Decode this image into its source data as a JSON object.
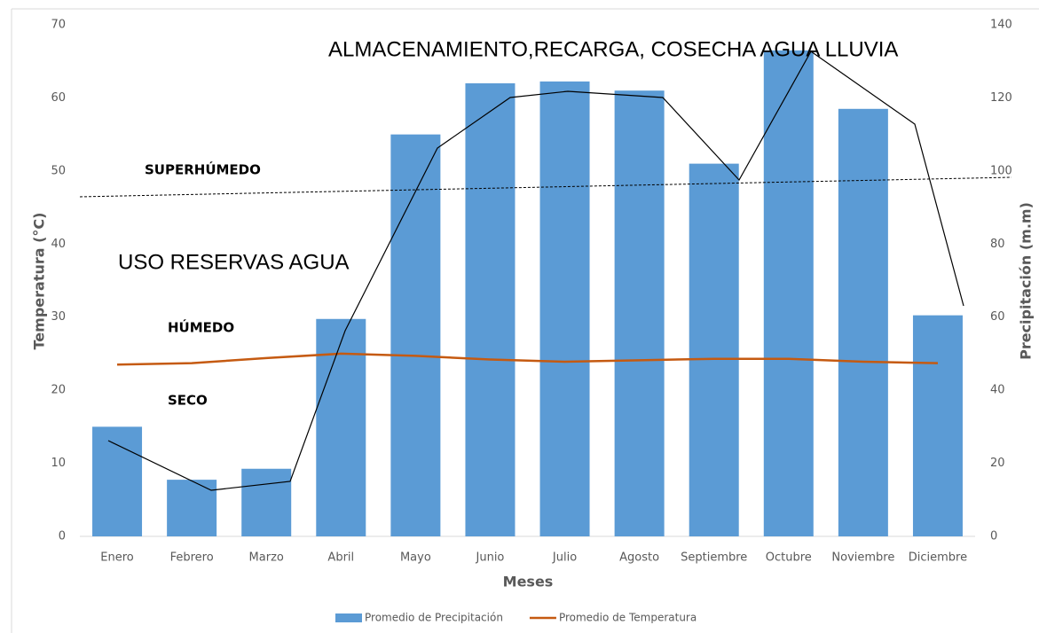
{
  "chart_data": {
    "type": "bar",
    "categories": [
      "Enero",
      "Febrero",
      "Marzo",
      "Abril",
      "Mayo",
      "Junio",
      "Julio",
      "Agosto",
      "Septiembre",
      "Octubre",
      "Noviembre",
      "Diciembre"
    ],
    "series": [
      {
        "name": "Promedio de Precipitación",
        "type": "bar",
        "axis": "y2",
        "color": "#5b9bd5",
        "values": [
          30,
          15.5,
          18.5,
          59.5,
          110,
          124,
          124.5,
          122,
          102,
          133,
          117,
          60.5
        ]
      },
      {
        "name": "Promedio de Temperatura",
        "type": "line",
        "color": "#c55a11",
        "values": [
          23.5,
          23.7,
          24.4,
          25,
          24.7,
          24.2,
          23.9,
          24.1,
          24.3,
          24.3,
          23.9,
          23.7
        ]
      }
    ],
    "ylim": [
      0,
      70
    ],
    "yticks": [
      0,
      10,
      20,
      30,
      40,
      50,
      60,
      70
    ],
    "y2lim": [
      0,
      140
    ],
    "y2ticks": [
      0,
      20,
      40,
      60,
      80,
      100,
      120,
      140
    ],
    "ylabel": "Temperatura (°C)",
    "y2label": "Precipitación (m.m)",
    "xlabel": "Meses",
    "annotations": [
      "ALMACENAMIENTO,RECARGA, COSECHA AGUA LLUVIA",
      "SUPERHÚMEDO",
      "USO RESERVAS AGUA",
      "HÚMEDO",
      "SECO"
    ],
    "legend": "bottom"
  }
}
